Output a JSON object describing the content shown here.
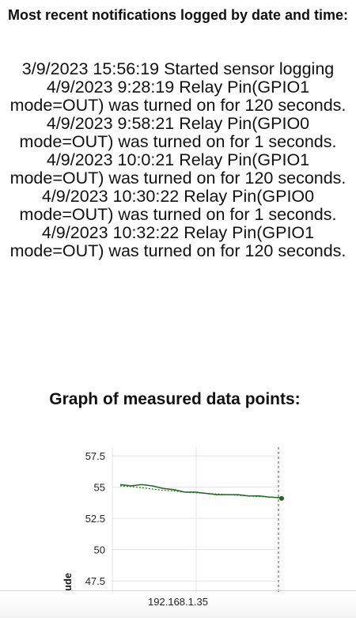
{
  "page": {
    "heading": "Most recent notifications logged by date and time:",
    "log_entries": [
      "3/9/2023 15:56:19 Started sensor logging",
      "4/9/2023 9:28:19 Relay Pin(GPIO1 mode=OUT) was turned on for 120 seconds.",
      "4/9/2023 9:58:21 Relay Pin(GPIO0 mode=OUT) was turned on for 1 seconds.",
      "4/9/2023 10:0:21 Relay Pin(GPIO1 mode=OUT) was turned on for 120 seconds.",
      "4/9/2023 10:30:22 Relay Pin(GPIO0 mode=OUT) was turned on for 1 seconds.",
      "4/9/2023 10:32:22 Relay Pin(GPIO1 mode=OUT) was turned on for 120 seconds."
    ],
    "chart_heading": "Graph of measured data points:"
  },
  "chart_data": {
    "type": "line",
    "title": "Graph of measured data points:",
    "ylabel_visible_fragment": "ude",
    "yticks": [
      "57.5",
      "55",
      "52.5",
      "50",
      "47.5"
    ],
    "ytick_values": [
      57.5,
      55,
      52.5,
      50,
      47.5
    ],
    "ylim": [
      46.5,
      58.2
    ],
    "grid": true,
    "series": [
      {
        "values": [
          55.2,
          55.1,
          55.2,
          55.1,
          54.9,
          54.8,
          54.6,
          54.6,
          54.5,
          54.4,
          54.4,
          54.4,
          54.3,
          54.3,
          54.2,
          54.15
        ],
        "color": "#1e6b1e",
        "style": "solid"
      },
      {
        "values": [
          55.1,
          55.05,
          54.95,
          54.85,
          54.75,
          54.7,
          54.6,
          54.55,
          54.5,
          54.45,
          54.4,
          54.35,
          54.3,
          54.25,
          54.2,
          54.15
        ],
        "color": "#1e6b1e",
        "style": "dotted"
      }
    ],
    "last_point": 54.1
  },
  "footer": {
    "url": "192.168.1.35"
  }
}
